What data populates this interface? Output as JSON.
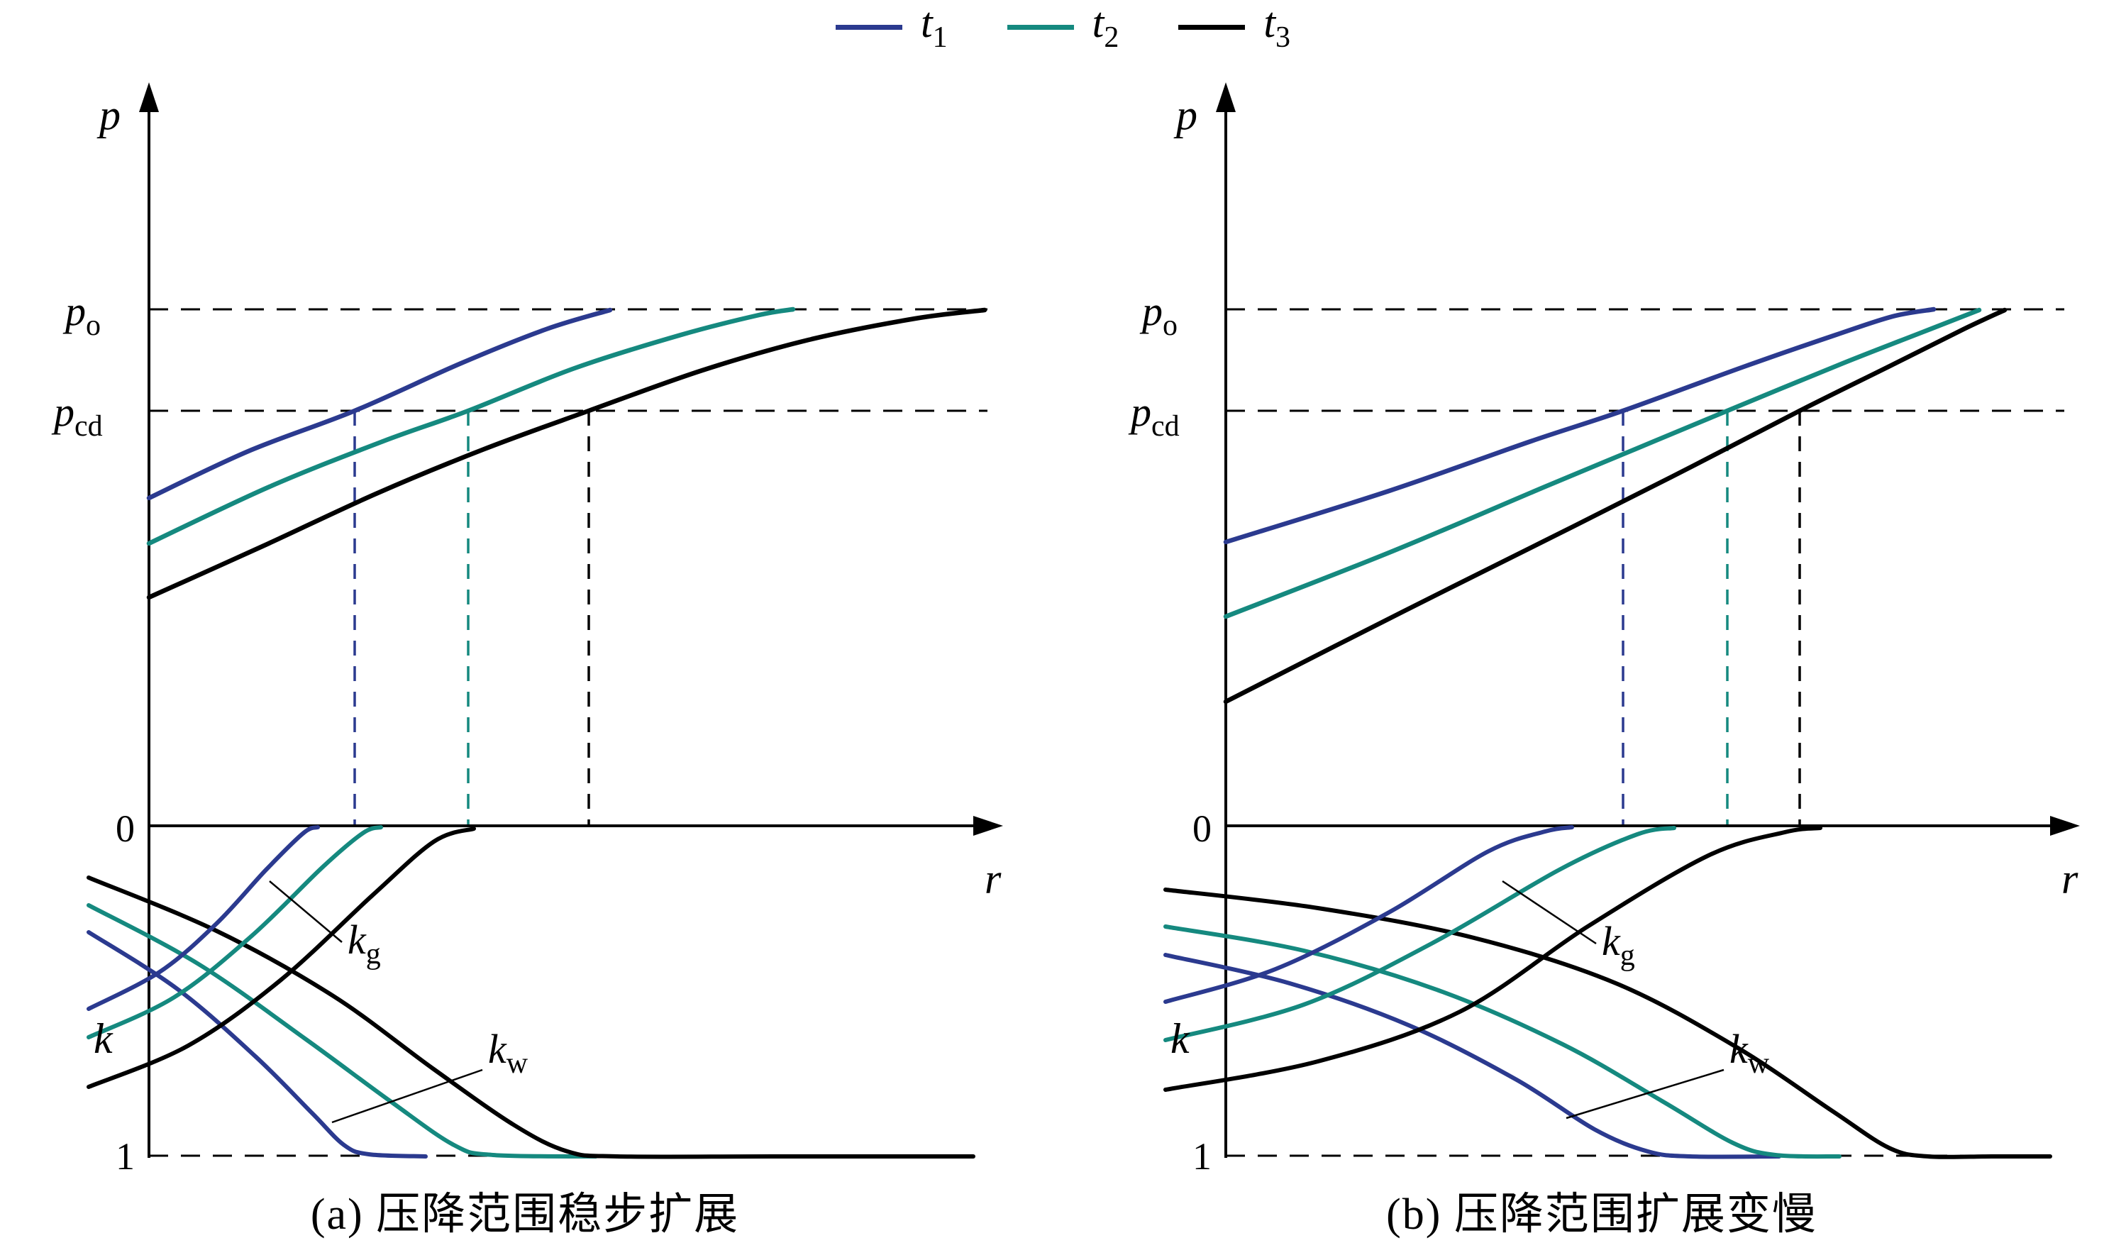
{
  "series_colors": {
    "t1": "#2b3a8f",
    "t2": "#15897f",
    "t3": "#000000"
  },
  "legend": {
    "items": [
      {
        "series": "t1",
        "main": "t",
        "sub": "1"
      },
      {
        "series": "t2",
        "main": "t",
        "sub": "2"
      },
      {
        "series": "t3",
        "main": "t",
        "sub": "3"
      }
    ]
  },
  "axis_labels": {
    "pressure": "p",
    "radius": "r",
    "origin": "0",
    "unity": "1",
    "permeability": "k",
    "p_initial": {
      "main": "p",
      "sub": "o"
    },
    "p_dew": {
      "main": "p",
      "sub": "cd"
    }
  },
  "chart_data": {
    "type": "line",
    "panels": [
      {
        "id": "a",
        "caption": "(a) 压降范围稳步扩展",
        "pressure_curves": [
          {
            "series": "t1",
            "points": [
              [
                170,
                628
              ],
              [
                310,
                562
              ],
              [
                460,
                505
              ],
              [
                610,
                438
              ],
              [
                730,
                390
              ],
              [
                820,
                363
              ]
            ]
          },
          {
            "series": "t2",
            "points": [
              [
                170,
                692
              ],
              [
                340,
                612
              ],
              [
                500,
                548
              ],
              [
                620,
                505
              ],
              [
                770,
                445
              ],
              [
                920,
                398
              ],
              [
                1030,
                370
              ],
              [
                1078,
                362
              ]
            ]
          },
          {
            "series": "t3",
            "points": [
              [
                170,
                768
              ],
              [
                330,
                696
              ],
              [
                490,
                622
              ],
              [
                640,
                560
              ],
              [
                790,
                505
              ],
              [
                950,
                448
              ],
              [
                1100,
                405
              ],
              [
                1250,
                375
              ],
              [
                1348,
                363
              ]
            ]
          }
        ],
        "drop_lines": [
          {
            "series": "t1",
            "x": 460
          },
          {
            "series": "t2",
            "x": 620
          },
          {
            "series": "t3",
            "x": 790
          }
        ],
        "kg_curves": [
          {
            "series": "t1",
            "points": [
              [
                85,
                1348
              ],
              [
                185,
                1296
              ],
              [
                265,
                1228
              ],
              [
                335,
                1152
              ],
              [
                388,
                1100
              ],
              [
                408,
                1092
              ]
            ]
          },
          {
            "series": "t2",
            "points": [
              [
                85,
                1388
              ],
              [
                205,
                1332
              ],
              [
                315,
                1245
              ],
              [
                415,
                1148
              ],
              [
                472,
                1100
              ],
              [
                497,
                1092
              ]
            ]
          },
          {
            "series": "t3",
            "points": [
              [
                85,
                1458
              ],
              [
                225,
                1400
              ],
              [
                355,
                1308
              ],
              [
                485,
                1188
              ],
              [
                572,
                1112
              ],
              [
                628,
                1094
              ]
            ]
          }
        ],
        "kw_curves": [
          {
            "series": "t1",
            "points": [
              [
                85,
                1240
              ],
              [
                210,
                1320
              ],
              [
                320,
                1415
              ],
              [
                400,
                1495
              ],
              [
                445,
                1540
              ],
              [
                480,
                1553
              ],
              [
                560,
                1556
              ]
            ]
          },
          {
            "series": "t2",
            "points": [
              [
                85,
                1202
              ],
              [
                240,
                1285
              ],
              [
                390,
                1390
              ],
              [
                510,
                1478
              ],
              [
                600,
                1540
              ],
              [
                655,
                1554
              ],
              [
                800,
                1556
              ]
            ]
          },
          {
            "series": "t3",
            "points": [
              [
                85,
                1163
              ],
              [
                265,
                1238
              ],
              [
                430,
                1330
              ],
              [
                570,
                1432
              ],
              [
                685,
                1512
              ],
              [
                760,
                1549
              ],
              [
                830,
                1556
              ],
              [
                1050,
                1556
              ],
              [
                1332,
                1556
              ]
            ]
          }
        ],
        "annotations": [
          {
            "name": "kg-label",
            "label": {
              "main": "k",
              "sub": "g"
            },
            "text": [
              450,
              1270
            ],
            "leader": [
              [
                340,
                1168
              ],
              [
                442,
                1254
              ]
            ]
          },
          {
            "name": "kw-label",
            "label": {
              "main": "k",
              "sub": "w"
            },
            "text": [
              648,
              1424
            ],
            "leader": [
              [
                428,
                1508
              ],
              [
                640,
                1434
              ]
            ]
          }
        ]
      },
      {
        "id": "b",
        "caption": "(b) 压降范围扩展变慢",
        "pressure_curves": [
          {
            "series": "t1",
            "points": [
              [
                170,
                690
              ],
              [
                400,
                618
              ],
              [
                600,
                548
              ],
              [
                730,
                505
              ],
              [
                900,
                443
              ],
              [
                1030,
                398
              ],
              [
                1110,
                372
              ],
              [
                1168,
                362
              ]
            ]
          },
          {
            "series": "t2",
            "points": [
              [
                170,
                795
              ],
              [
                400,
                705
              ],
              [
                620,
                612
              ],
              [
                745,
                560
              ],
              [
                877,
                505
              ],
              [
                1040,
                438
              ],
              [
                1150,
                395
              ],
              [
                1232,
                363
              ]
            ]
          },
          {
            "series": "t3",
            "points": [
              [
                170,
                915
              ],
              [
                420,
                788
              ],
              [
                660,
                668
              ],
              [
                830,
                582
              ],
              [
                979,
                505
              ],
              [
                1110,
                440
              ],
              [
                1210,
                390
              ],
              [
                1268,
                363
              ]
            ]
          }
        ],
        "drop_lines": [
          {
            "series": "t1",
            "x": 730
          },
          {
            "series": "t2",
            "x": 877
          },
          {
            "series": "t3",
            "x": 979
          }
        ],
        "kg_curves": [
          {
            "series": "t1",
            "points": [
              [
                85,
                1338
              ],
              [
                240,
                1292
              ],
              [
                400,
                1212
              ],
              [
                540,
                1126
              ],
              [
                620,
                1098
              ],
              [
                658,
                1092
              ]
            ]
          },
          {
            "series": "t2",
            "points": [
              [
                85,
                1392
              ],
              [
                280,
                1342
              ],
              [
                460,
                1256
              ],
              [
                640,
                1152
              ],
              [
                750,
                1102
              ],
              [
                802,
                1093
              ]
            ]
          },
          {
            "series": "t3",
            "points": [
              [
                85,
                1462
              ],
              [
                300,
                1422
              ],
              [
                500,
                1352
              ],
              [
                680,
                1232
              ],
              [
                850,
                1132
              ],
              [
                958,
                1099
              ],
              [
                1008,
                1093
              ]
            ]
          }
        ],
        "kw_curves": [
          {
            "series": "t1",
            "points": [
              [
                85,
                1272
              ],
              [
                260,
                1312
              ],
              [
                430,
                1372
              ],
              [
                580,
                1448
              ],
              [
                690,
                1518
              ],
              [
                765,
                1549
              ],
              [
                825,
                1556
              ],
              [
                950,
                1556
              ]
            ]
          },
          {
            "series": "t2",
            "points": [
              [
                85,
                1232
              ],
              [
                280,
                1266
              ],
              [
                470,
                1322
              ],
              [
                645,
                1398
              ],
              [
                785,
                1478
              ],
              [
                885,
                1537
              ],
              [
                945,
                1554
              ],
              [
                1035,
                1556
              ]
            ]
          },
          {
            "series": "t3",
            "points": [
              [
                85,
                1180
              ],
              [
                300,
                1206
              ],
              [
                520,
                1248
              ],
              [
                720,
                1312
              ],
              [
                890,
                1402
              ],
              [
                1025,
                1492
              ],
              [
                1105,
                1544
              ],
              [
                1160,
                1556
              ],
              [
                1250,
                1556
              ],
              [
                1332,
                1556
              ]
            ]
          }
        ],
        "annotations": [
          {
            "name": "kg-label",
            "label": {
              "main": "k",
              "sub": "g"
            },
            "text": [
              700,
              1272
            ],
            "leader": [
              [
                560,
                1168
              ],
              [
                692,
                1256
              ]
            ]
          },
          {
            "name": "kw-label",
            "label": {
              "main": "k",
              "sub": "w"
            },
            "text": [
              880,
              1424
            ],
            "leader": [
              [
                650,
                1502
              ],
              [
                872,
                1434
              ]
            ]
          }
        ]
      }
    ]
  }
}
